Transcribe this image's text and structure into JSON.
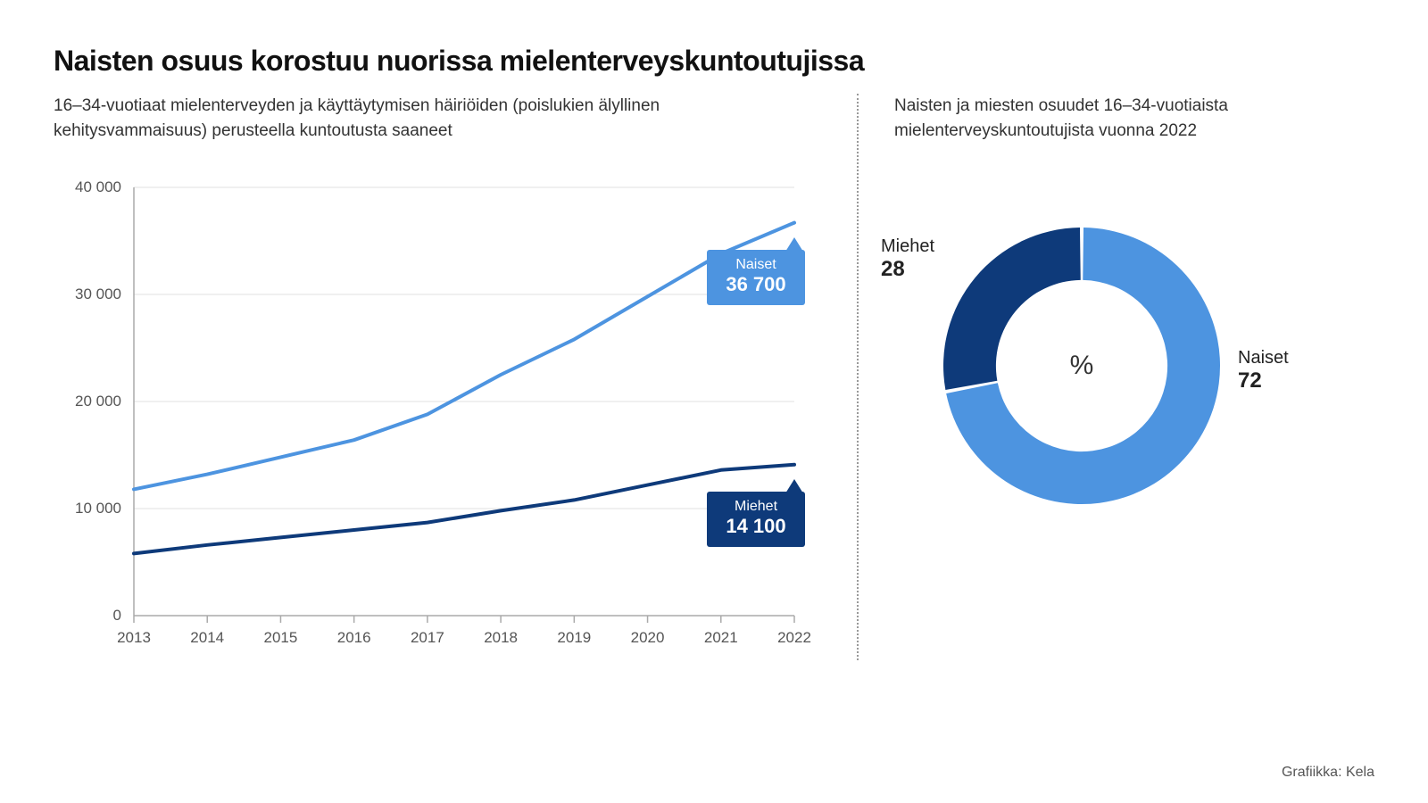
{
  "title": "Naisten osuus korostuu nuorissa mielenterveyskuntoutujissa",
  "line_chart": {
    "subtitle": "16–34-vuotiaat mielenterveyden ja käyttäytymisen häiriöiden (poislukien älyllinen kehitysvammaisuus) perusteella kuntoutusta saaneet",
    "type": "line",
    "years": [
      "2013",
      "2014",
      "2015",
      "2016",
      "2017",
      "2018",
      "2019",
      "2020",
      "2021",
      "2022"
    ],
    "ylim": [
      0,
      40000
    ],
    "ytick_step": 10000,
    "ytick_labels": [
      "0",
      "10 000",
      "20 000",
      "30 000",
      "40 000"
    ],
    "series": [
      {
        "name": "Naiset",
        "color": "#4d94e0",
        "values": [
          11800,
          13200,
          14800,
          16400,
          18800,
          22500,
          25800,
          29800,
          33800,
          36700
        ],
        "callout_label": "Naiset",
        "callout_value": "36 700"
      },
      {
        "name": "Miehet",
        "color": "#0e3a7a",
        "values": [
          5800,
          6600,
          7300,
          8000,
          8700,
          9800,
          10800,
          12200,
          13600,
          14100
        ],
        "callout_label": "Miehet",
        "callout_value": "14 100"
      }
    ],
    "line_width": 4,
    "background_color": "#ffffff",
    "grid_color": "#e0e0e0",
    "axis_label_fontsize": 17
  },
  "donut_chart": {
    "subtitle": "Naisten ja miesten osuudet 16–34-vuotiaista mielenterveyskuntoutujista vuonna 2022",
    "type": "donut",
    "center_label": "%",
    "segments": [
      {
        "label": "Naiset",
        "value": 72,
        "color": "#4d94e0"
      },
      {
        "label": "Miehet",
        "value": 28,
        "color": "#0e3a7a"
      }
    ],
    "inner_radius": 0.62,
    "outer_radius": 1.0,
    "gap_deg": 1.5,
    "start_angle_deg": 0
  },
  "credit": "Grafiikka: Kela"
}
